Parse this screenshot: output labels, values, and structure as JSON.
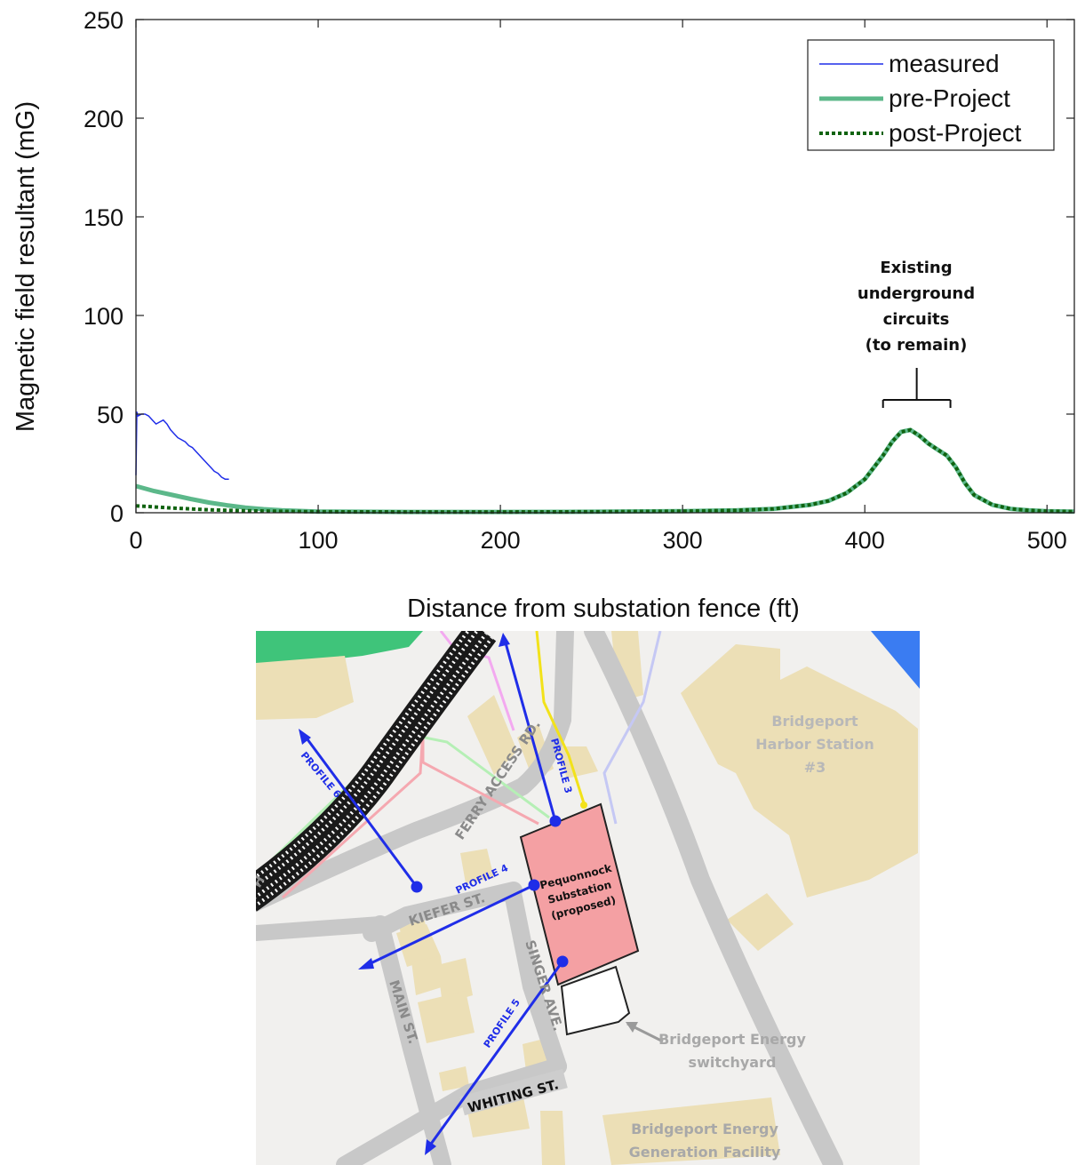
{
  "chart_data": {
    "type": "line",
    "xlabel": "Distance from substation fence (ft)",
    "ylabel": "Magnetic field resultant (mG)",
    "xlim": [
      0,
      515
    ],
    "ylim": [
      0,
      250
    ],
    "x_ticks": [
      "0",
      "100",
      "200",
      "300",
      "400",
      "500"
    ],
    "y_ticks": [
      "0",
      "50",
      "100",
      "150",
      "200",
      "250"
    ],
    "x_tick_values": [
      0,
      100,
      200,
      300,
      400,
      500
    ],
    "y_tick_values": [
      0,
      50,
      100,
      150,
      200,
      250
    ],
    "grid": false,
    "legend_position": "top-right",
    "series": [
      {
        "name": "measured",
        "color": "#1f2de8",
        "style": "thin-solid",
        "x": [
          0,
          0.5,
          1,
          3,
          5,
          7,
          9,
          11,
          13,
          15,
          17,
          19,
          21,
          23,
          25,
          27,
          29,
          31,
          33,
          35,
          37,
          39,
          41,
          43,
          45,
          47,
          49,
          51
        ],
        "y": [
          19,
          51,
          49,
          50,
          50,
          49,
          47,
          45,
          46,
          47,
          45,
          42,
          40,
          38,
          37,
          36,
          34,
          33,
          31,
          29,
          27,
          25,
          23,
          21,
          20,
          18,
          17,
          17
        ]
      },
      {
        "name": "pre-Project",
        "color": "#5cb88a",
        "style": "thick-solid",
        "x": [
          0,
          10,
          20,
          30,
          40,
          50,
          60,
          70,
          80,
          90,
          100,
          150,
          200,
          250,
          300,
          330,
          350,
          370,
          380,
          390,
          400,
          410,
          415,
          420,
          425,
          430,
          435,
          440,
          445,
          450,
          455,
          460,
          470,
          480,
          490,
          500,
          515
        ],
        "y": [
          13.5,
          11,
          9,
          7,
          5.2,
          3.8,
          2.6,
          1.8,
          1.2,
          0.9,
          0.6,
          0.4,
          0.4,
          0.5,
          0.8,
          1.2,
          2,
          4,
          6,
          10,
          17,
          29,
          36,
          41,
          42,
          39,
          35,
          32,
          29,
          23,
          15,
          9,
          4,
          2,
          1.2,
          0.8,
          0.6
        ]
      },
      {
        "name": "post-Project",
        "color": "#106310",
        "style": "dotted",
        "x": [
          0,
          20,
          40,
          60,
          80,
          100,
          150,
          200,
          250,
          300,
          330,
          350,
          370,
          380,
          390,
          400,
          410,
          415,
          420,
          425,
          430,
          435,
          440,
          445,
          450,
          455,
          460,
          470,
          480,
          490,
          500,
          515
        ],
        "y": [
          3.5,
          2.4,
          1.5,
          1.0,
          0.7,
          0.5,
          0.4,
          0.4,
          0.5,
          0.8,
          1.2,
          2,
          4,
          6,
          10,
          17,
          29,
          36,
          41,
          42,
          39,
          35,
          32,
          29,
          23,
          15,
          9,
          4,
          2,
          1.2,
          0.8,
          0.6
        ]
      }
    ],
    "annotations": [
      {
        "lines": [
          "Existing",
          "underground",
          "circuits",
          "(to remain)"
        ],
        "bracket_x": [
          410,
          447
        ]
      }
    ]
  },
  "map": {
    "labels": {
      "harbor_station": [
        "Bridgeport",
        "Harbor Station",
        "#3"
      ],
      "substation": [
        "Pequonnock",
        "Substation",
        "(proposed)"
      ],
      "switchyard": [
        "Bridgeport Energy",
        "switchyard"
      ],
      "generation": [
        "Bridgeport Energy",
        "Generation Facility"
      ],
      "ferry_access": "FERRY ACCESS RD.",
      "kiefer": "KIEFER ST.",
      "main": "MAIN ST.",
      "singer": "SINGER AVE.",
      "whiting": "WHITING ST.",
      "edge_h": "H",
      "profile3": "PROFILE 3",
      "profile4": "PROFILE 4",
      "profile5": "PROFILE 5",
      "profile6": "PROFILE 6"
    },
    "colors": {
      "background": "#f1f0ee",
      "building": "#ecdfb6",
      "road": "#c8c8c8",
      "substation": "#f4a0a3",
      "profile": "#1f2de8",
      "park": "#3fc47a",
      "water": "#3a7cf2",
      "yellow_line": "#f2e21a"
    }
  }
}
